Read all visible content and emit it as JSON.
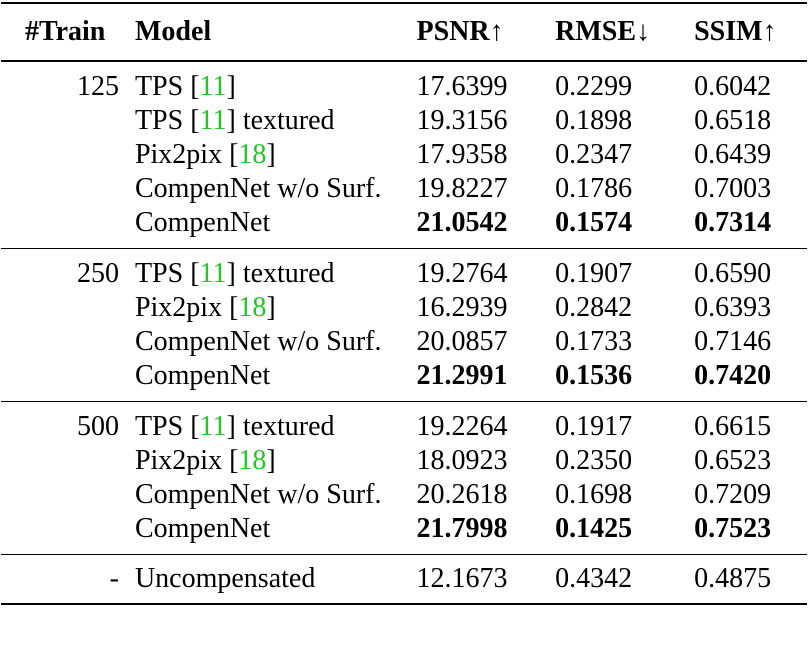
{
  "headers": {
    "train": "#Train",
    "model": "Model",
    "psnr": "PSNR↑",
    "rmse": "RMSE↓",
    "ssim": "SSIM↑"
  },
  "accent_colors": {
    "citation": "#22c722",
    "text": "#000000"
  },
  "groups": [
    {
      "train": "125",
      "rows": [
        {
          "model": "TPS",
          "ref": "11",
          "suffix": "",
          "psnr": "17.6399",
          "rmse": "0.2299",
          "ssim": "0.6042",
          "bold": false
        },
        {
          "model": "TPS",
          "ref": "11",
          "suffix": " textured",
          "psnr": "19.3156",
          "rmse": "0.1898",
          "ssim": "0.6518",
          "bold": false
        },
        {
          "model": "Pix2pix",
          "ref": "18",
          "suffix": "",
          "psnr": "17.9358",
          "rmse": "0.2347",
          "ssim": "0.6439",
          "bold": false
        },
        {
          "model": "CompenNet w/o Surf.",
          "ref": "",
          "suffix": "",
          "psnr": "19.8227",
          "rmse": "0.1786",
          "ssim": "0.7003",
          "bold": false
        },
        {
          "model": "CompenNet",
          "ref": "",
          "suffix": "",
          "psnr": "21.0542",
          "rmse": "0.1574",
          "ssim": "0.7314",
          "bold": true
        }
      ]
    },
    {
      "train": "250",
      "rows": [
        {
          "model": "TPS",
          "ref": "11",
          "suffix": " textured",
          "psnr": "19.2764",
          "rmse": "0.1907",
          "ssim": "0.6590",
          "bold": false
        },
        {
          "model": "Pix2pix",
          "ref": "18",
          "suffix": "",
          "psnr": "16.2939",
          "rmse": "0.2842",
          "ssim": "0.6393",
          "bold": false
        },
        {
          "model": "CompenNet w/o Surf.",
          "ref": "",
          "suffix": "",
          "psnr": "20.0857",
          "rmse": "0.1733",
          "ssim": "0.7146",
          "bold": false
        },
        {
          "model": "CompenNet",
          "ref": "",
          "suffix": "",
          "psnr": "21.2991",
          "rmse": "0.1536",
          "ssim": "0.7420",
          "bold": true
        }
      ]
    },
    {
      "train": "500",
      "rows": [
        {
          "model": "TPS",
          "ref": "11",
          "suffix": " textured",
          "psnr": "19.2264",
          "rmse": "0.1917",
          "ssim": "0.6615",
          "bold": false
        },
        {
          "model": "Pix2pix",
          "ref": "18",
          "suffix": "",
          "psnr": "18.0923",
          "rmse": "0.2350",
          "ssim": "0.6523",
          "bold": false
        },
        {
          "model": "CompenNet w/o Surf.",
          "ref": "",
          "suffix": "",
          "psnr": "20.2618",
          "rmse": "0.1698",
          "ssim": "0.7209",
          "bold": false
        },
        {
          "model": "CompenNet",
          "ref": "",
          "suffix": "",
          "psnr": "21.7998",
          "rmse": "0.1425",
          "ssim": "0.7523",
          "bold": true
        }
      ]
    }
  ],
  "baseline": {
    "train": "-",
    "model": "Uncompensated",
    "psnr": "12.1673",
    "rmse": "0.4342",
    "ssim": "0.4875"
  }
}
